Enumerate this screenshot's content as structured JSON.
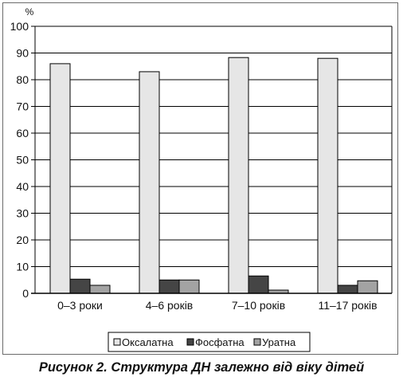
{
  "chart_data": {
    "type": "bar",
    "ylabel": "%",
    "ylim": [
      0,
      100
    ],
    "yticks": [
      0,
      10,
      20,
      30,
      40,
      50,
      60,
      70,
      80,
      90,
      100
    ],
    "grid": true,
    "legend_position": "bottom",
    "categories": [
      "0–3 роки",
      "4–6 років",
      "7–10 років",
      "11–17 років"
    ],
    "series": [
      {
        "name": "Оксалатна",
        "color": "#e6e6e6",
        "values": [
          86,
          83,
          88.3,
          88
        ]
      },
      {
        "name": "Фосфатна",
        "color": "#454545",
        "values": [
          5.3,
          5,
          6.5,
          3
        ]
      },
      {
        "name": "Уратна",
        "color": "#a3a3a3",
        "values": [
          3,
          5,
          1.2,
          4.7
        ]
      }
    ]
  },
  "caption": "Рисунок 2. Структура ДН залежно від віку дітей"
}
